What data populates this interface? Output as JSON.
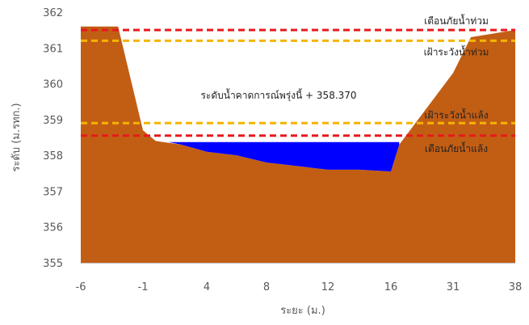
{
  "chart_data": {
    "type": "area",
    "title": "",
    "xlabel": "ระยะ (ม.)",
    "ylabel": "ระดับ (ม.รทก.)",
    "x_ticks": [
      "-6",
      "-1",
      "4",
      "8",
      "12",
      "16",
      "31",
      "38"
    ],
    "y_ticks": [
      "355",
      "356",
      "357",
      "358",
      "359",
      "360",
      "361",
      "362"
    ],
    "ylim": [
      355,
      362
    ],
    "grid": false,
    "ground_profile": {
      "x": [
        -6.5,
        -6,
        -3,
        -1,
        0,
        2,
        4,
        6,
        8,
        10,
        12,
        14,
        16,
        18,
        31,
        33,
        38,
        38.5
      ],
      "y": [
        361.6,
        361.6,
        361.6,
        358.7,
        358.4,
        358.3,
        358.1,
        358.0,
        357.8,
        357.7,
        357.6,
        357.6,
        357.55,
        358.3,
        360.3,
        361.3,
        361.5,
        361.5
      ]
    },
    "water": {
      "level": 358.37,
      "from_x": 1,
      "to_x": 18,
      "color": "#0000ff"
    },
    "ground_color": "#c25e14",
    "thresholds": [
      {
        "label": "เตือนภัยน้ำท่วม",
        "value": 361.5,
        "color": "#e8191c",
        "style": "dashed"
      },
      {
        "label": "เฝ้าระวังน้ำท่วม",
        "value": 361.2,
        "color": "#f4b400",
        "style": "dashed"
      },
      {
        "label": "เฝ้าระวังน้ำแล้ง",
        "value": 358.9,
        "color": "#f4b400",
        "style": "dashed"
      },
      {
        "label": "เตือนภัยน้ำแล้ง",
        "value": 358.55,
        "color": "#e8191c",
        "style": "dashed"
      }
    ],
    "annotations": [
      {
        "text": "ระดับน้ำคาดการณ์พรุ่งนี้ + 358.370"
      }
    ]
  }
}
